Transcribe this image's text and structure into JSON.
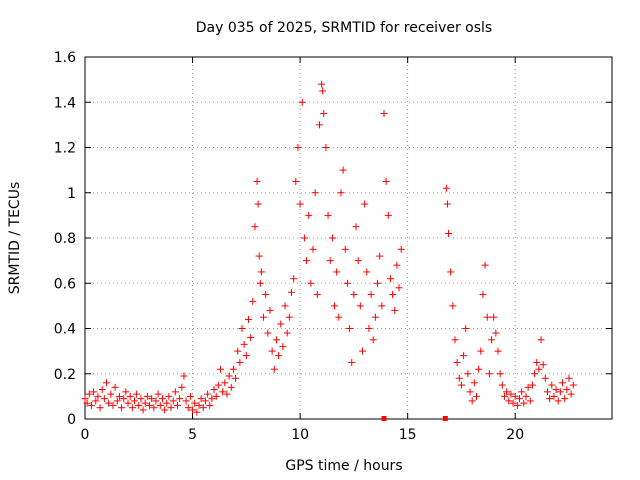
{
  "chart_data": {
    "type": "scatter",
    "title": "Day 035 of 2025, SRMTID for receiver osls",
    "xlabel": "GPS time / hours",
    "ylabel": "SRMTID / TECUs",
    "xlim": [
      0,
      24.5
    ],
    "ylim": [
      0,
      1.6
    ],
    "xticks": [
      0,
      5,
      10,
      15,
      20
    ],
    "xtick_labels": [
      "0",
      "5",
      "10",
      "15",
      "20"
    ],
    "yticks": [
      0,
      0.2,
      0.4,
      0.6,
      0.8,
      1.0,
      1.2,
      1.4,
      1.6
    ],
    "ytick_labels": [
      "0",
      "0.2",
      "0.4",
      "0.6",
      "0.8",
      "1",
      "1.2",
      "1.4",
      "1.6"
    ],
    "grid": true,
    "marker": "+",
    "color": "#ff0000",
    "series": [
      {
        "name": "SRMTID",
        "points": [
          [
            0.0,
            0.09
          ],
          [
            0.1,
            0.07
          ],
          [
            0.2,
            0.11
          ],
          [
            0.3,
            0.06
          ],
          [
            0.4,
            0.12
          ],
          [
            0.5,
            0.08
          ],
          [
            0.6,
            0.1
          ],
          [
            0.7,
            0.05
          ],
          [
            0.8,
            0.13
          ],
          [
            0.9,
            0.09
          ],
          [
            1.0,
            0.16
          ],
          [
            1.1,
            0.07
          ],
          [
            1.2,
            0.11
          ],
          [
            1.3,
            0.06
          ],
          [
            1.4,
            0.14
          ],
          [
            1.5,
            0.08
          ],
          [
            1.6,
            0.1
          ],
          [
            1.7,
            0.05
          ],
          [
            1.8,
            0.09
          ],
          [
            1.9,
            0.12
          ],
          [
            2.0,
            0.07
          ],
          [
            2.1,
            0.1
          ],
          [
            2.2,
            0.05
          ],
          [
            2.3,
            0.08
          ],
          [
            2.4,
            0.11
          ],
          [
            2.5,
            0.06
          ],
          [
            2.6,
            0.09
          ],
          [
            2.7,
            0.04
          ],
          [
            2.8,
            0.07
          ],
          [
            2.9,
            0.1
          ],
          [
            3.0,
            0.06
          ],
          [
            3.1,
            0.09
          ],
          [
            3.2,
            0.05
          ],
          [
            3.3,
            0.08
          ],
          [
            3.4,
            0.11
          ],
          [
            3.5,
            0.06
          ],
          [
            3.6,
            0.09
          ],
          [
            3.7,
            0.04
          ],
          [
            3.8,
            0.07
          ],
          [
            3.9,
            0.1
          ],
          [
            4.0,
            0.05
          ],
          [
            4.1,
            0.08
          ],
          [
            4.2,
            0.12
          ],
          [
            4.3,
            0.06
          ],
          [
            4.4,
            0.09
          ],
          [
            4.5,
            0.14
          ],
          [
            4.6,
            0.19
          ],
          [
            4.7,
            0.08
          ],
          [
            4.8,
            0.05
          ],
          [
            4.9,
            0.1
          ],
          [
            5.0,
            0.04
          ],
          [
            5.1,
            0.07
          ],
          [
            5.2,
            0.03
          ],
          [
            5.3,
            0.06
          ],
          [
            5.4,
            0.09
          ],
          [
            5.5,
            0.05
          ],
          [
            5.6,
            0.08
          ],
          [
            5.7,
            0.11
          ],
          [
            5.8,
            0.06
          ],
          [
            5.9,
            0.09
          ],
          [
            6.0,
            0.13
          ],
          [
            6.1,
            0.1
          ],
          [
            6.2,
            0.15
          ],
          [
            6.3,
            0.22
          ],
          [
            6.4,
            0.12
          ],
          [
            6.5,
            0.16
          ],
          [
            6.6,
            0.11
          ],
          [
            6.7,
            0.19
          ],
          [
            6.8,
            0.14
          ],
          [
            6.9,
            0.22
          ],
          [
            7.0,
            0.18
          ],
          [
            7.1,
            0.3
          ],
          [
            7.2,
            0.25
          ],
          [
            7.3,
            0.4
          ],
          [
            7.4,
            0.33
          ],
          [
            7.5,
            0.28
          ],
          [
            7.6,
            0.44
          ],
          [
            7.7,
            0.36
          ],
          [
            7.8,
            0.52
          ],
          [
            7.9,
            0.85
          ],
          [
            8.0,
            1.05
          ],
          [
            8.05,
            0.95
          ],
          [
            8.1,
            0.72
          ],
          [
            8.15,
            0.6
          ],
          [
            8.2,
            0.65
          ],
          [
            8.3,
            0.45
          ],
          [
            8.4,
            0.55
          ],
          [
            8.5,
            0.38
          ],
          [
            8.6,
            0.48
          ],
          [
            8.7,
            0.3
          ],
          [
            8.8,
            0.22
          ],
          [
            8.9,
            0.35
          ],
          [
            9.0,
            0.28
          ],
          [
            9.1,
            0.42
          ],
          [
            9.2,
            0.32
          ],
          [
            9.3,
            0.5
          ],
          [
            9.4,
            0.38
          ],
          [
            9.5,
            0.45
          ],
          [
            9.6,
            0.56
          ],
          [
            9.7,
            0.62
          ],
          [
            9.8,
            1.05
          ],
          [
            9.9,
            1.2
          ],
          [
            10.0,
            0.95
          ],
          [
            10.1,
            1.4
          ],
          [
            10.2,
            0.8
          ],
          [
            10.3,
            0.7
          ],
          [
            10.4,
            0.9
          ],
          [
            10.5,
            0.6
          ],
          [
            10.6,
            0.75
          ],
          [
            10.7,
            1.0
          ],
          [
            10.8,
            0.55
          ],
          [
            10.9,
            1.3
          ],
          [
            11.0,
            1.48
          ],
          [
            11.05,
            1.45
          ],
          [
            11.1,
            1.35
          ],
          [
            11.2,
            1.2
          ],
          [
            11.3,
            0.9
          ],
          [
            11.4,
            0.7
          ],
          [
            11.5,
            0.8
          ],
          [
            11.6,
            0.5
          ],
          [
            11.7,
            0.65
          ],
          [
            11.8,
            0.45
          ],
          [
            11.9,
            1.0
          ],
          [
            12.0,
            1.1
          ],
          [
            12.1,
            0.75
          ],
          [
            12.2,
            0.6
          ],
          [
            12.3,
            0.4
          ],
          [
            12.4,
            0.25
          ],
          [
            12.5,
            0.55
          ],
          [
            12.6,
            0.85
          ],
          [
            12.7,
            0.7
          ],
          [
            12.8,
            0.5
          ],
          [
            12.9,
            0.3
          ],
          [
            13.0,
            0.95
          ],
          [
            13.1,
            0.65
          ],
          [
            13.2,
            0.4
          ],
          [
            13.3,
            0.55
          ],
          [
            13.4,
            0.35
          ],
          [
            13.5,
            0.45
          ],
          [
            13.6,
            0.6
          ],
          [
            13.7,
            0.72
          ],
          [
            13.8,
            0.5
          ],
          [
            13.9,
            1.35
          ],
          [
            14.0,
            1.05
          ],
          [
            14.1,
            0.9
          ],
          [
            14.2,
            0.62
          ],
          [
            14.3,
            0.55
          ],
          [
            14.4,
            0.48
          ],
          [
            14.5,
            0.68
          ],
          [
            14.6,
            0.58
          ],
          [
            14.7,
            0.75
          ],
          [
            16.8,
            1.02
          ],
          [
            16.85,
            0.95
          ],
          [
            16.9,
            0.82
          ],
          [
            17.0,
            0.65
          ],
          [
            17.1,
            0.5
          ],
          [
            17.2,
            0.35
          ],
          [
            17.3,
            0.25
          ],
          [
            17.4,
            0.18
          ],
          [
            17.5,
            0.15
          ],
          [
            17.6,
            0.28
          ],
          [
            17.7,
            0.4
          ],
          [
            17.8,
            0.2
          ],
          [
            17.9,
            0.12
          ],
          [
            18.0,
            0.08
          ],
          [
            18.1,
            0.16
          ],
          [
            18.2,
            0.1
          ],
          [
            18.3,
            0.22
          ],
          [
            18.4,
            0.3
          ],
          [
            18.5,
            0.55
          ],
          [
            18.6,
            0.68
          ],
          [
            18.7,
            0.45
          ],
          [
            18.8,
            0.2
          ],
          [
            18.9,
            0.35
          ],
          [
            19.0,
            0.45
          ],
          [
            19.1,
            0.38
          ],
          [
            19.2,
            0.3
          ],
          [
            19.3,
            0.2
          ],
          [
            19.4,
            0.15
          ],
          [
            19.5,
            0.1
          ],
          [
            19.6,
            0.12
          ],
          [
            19.7,
            0.08
          ],
          [
            19.8,
            0.11
          ],
          [
            19.9,
            0.07
          ],
          [
            20.0,
            0.1
          ],
          [
            20.1,
            0.06
          ],
          [
            20.2,
            0.09
          ],
          [
            20.3,
            0.12
          ],
          [
            20.4,
            0.07
          ],
          [
            20.5,
            0.1
          ],
          [
            20.6,
            0.14
          ],
          [
            20.7,
            0.08
          ],
          [
            20.8,
            0.15
          ],
          [
            20.9,
            0.2
          ],
          [
            21.0,
            0.25
          ],
          [
            21.1,
            0.22
          ],
          [
            21.2,
            0.35
          ],
          [
            21.3,
            0.24
          ],
          [
            21.4,
            0.18
          ],
          [
            21.5,
            0.12
          ],
          [
            21.6,
            0.09
          ],
          [
            21.7,
            0.15
          ],
          [
            21.8,
            0.1
          ],
          [
            21.9,
            0.13
          ],
          [
            22.0,
            0.08
          ],
          [
            22.1,
            0.12
          ],
          [
            22.2,
            0.16
          ],
          [
            22.3,
            0.09
          ],
          [
            22.4,
            0.13
          ],
          [
            22.5,
            0.18
          ],
          [
            22.6,
            0.11
          ],
          [
            22.7,
            0.15
          ]
        ]
      }
    ],
    "zero_markers_x": [
      13.9,
      16.75
    ]
  }
}
